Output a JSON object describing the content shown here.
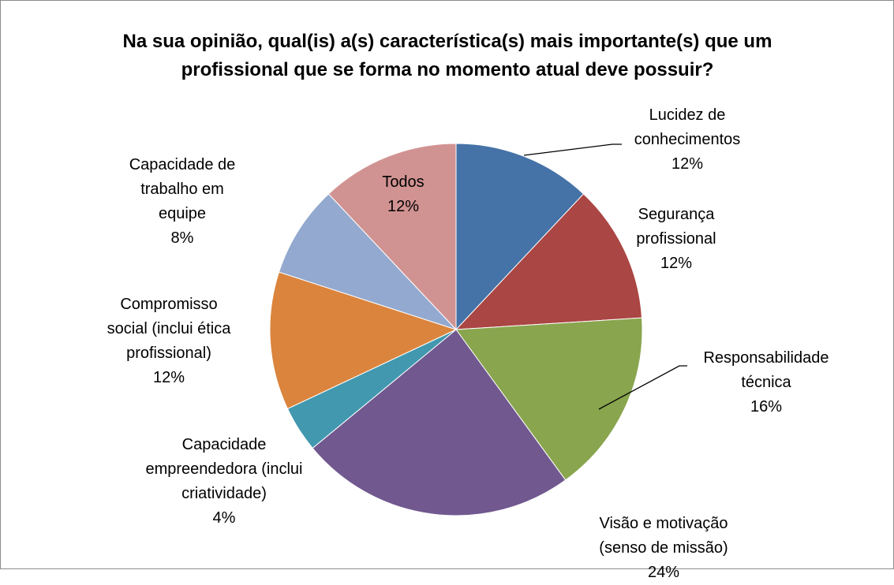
{
  "chart_data": {
    "type": "pie",
    "title": "Na sua opinião, qual(is) a(s) característica(s) mais importante(s) que um profissional que se forma no momento atual deve possuir?",
    "categories": [
      "Lucidez de conhecimentos",
      "Segurança profissional",
      "Responsabilidade técnica",
      "Visão e motivação (senso de missão)",
      "Capacidade empreendedora (inclui criatividade)",
      "Compromisso social (inclui ética profissional)",
      "Capacidade de trabalho em equipe",
      "Todos"
    ],
    "values": [
      12,
      12,
      16,
      24,
      4,
      12,
      8,
      12
    ],
    "value_labels": [
      "12%",
      "12%",
      "16%",
      "24%",
      "4%",
      "12%",
      "8%",
      "12%"
    ],
    "colors": [
      "#4572a7",
      "#aa4643",
      "#89a54e",
      "#71588f",
      "#4198af",
      "#db843d",
      "#93a9cf",
      "#d19392"
    ]
  }
}
